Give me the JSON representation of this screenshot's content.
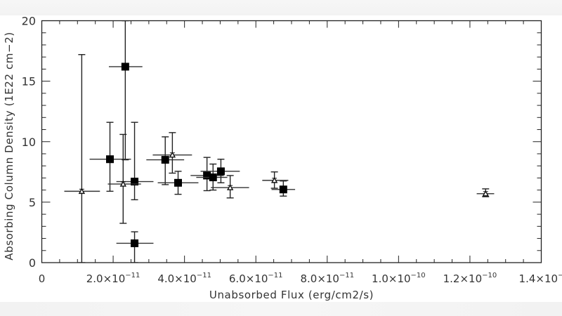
{
  "chart_data": {
    "type": "scatter",
    "title": "",
    "xlabel": "Unabsorbed Flux (erg/cm2/s)",
    "ylabel": "Absorbing Column Density (1E22 cm−2)",
    "xlim": [
      0,
      1.4e-10
    ],
    "ylim": [
      0,
      20
    ],
    "grid": false,
    "legend": null,
    "x_ticks": [
      {
        "value": 0,
        "label": "0"
      },
      {
        "value": 2e-11,
        "label": "2.0×10",
        "exp": "−11"
      },
      {
        "value": 4e-11,
        "label": "4.0×10",
        "exp": "−11"
      },
      {
        "value": 6e-11,
        "label": "6.0×10",
        "exp": "−11"
      },
      {
        "value": 8e-11,
        "label": "8.0×10",
        "exp": "−11"
      },
      {
        "value": 1e-10,
        "label": "1.0×10",
        "exp": "−10"
      },
      {
        "value": 1.2e-10,
        "label": "1.2×10",
        "exp": "−10"
      },
      {
        "value": 1.4e-10,
        "label": "1.4×10",
        "exp": "−"
      }
    ],
    "y_ticks": [
      {
        "value": 0,
        "label": "0"
      },
      {
        "value": 5,
        "label": "5"
      },
      {
        "value": 10,
        "label": "10"
      },
      {
        "value": 15,
        "label": "15"
      },
      {
        "value": 20,
        "label": "20"
      }
    ],
    "series": [
      {
        "name": "squares",
        "marker": "square",
        "points": [
          {
            "x": 2.34e-11,
            "y": 16.2,
            "xerr": [
              1.88e-11,
              2.82e-11
            ],
            "yerr": [
              8.5,
              20.0
            ]
          },
          {
            "x": 1.91e-11,
            "y": 8.55,
            "xerr": [
              1.34e-11,
              2.5e-11
            ],
            "yerr": [
              5.9,
              11.6
            ]
          },
          {
            "x": 2.6e-11,
            "y": 6.7,
            "xerr": [
              2.09e-11,
              3.13e-11
            ],
            "yerr": [
              5.2,
              11.6
            ]
          },
          {
            "x": 2.6e-11,
            "y": 1.6,
            "xerr": [
              2.09e-11,
              3.13e-11
            ],
            "yerr": [
              0.0,
              2.55
            ]
          },
          {
            "x": 3.46e-11,
            "y": 8.5,
            "xerr": [
              2.93e-11,
              3.99e-11
            ],
            "yerr": [
              6.45,
              10.4
            ]
          },
          {
            "x": 3.82e-11,
            "y": 6.6,
            "xerr": [
              3.25e-11,
              4.39e-11
            ],
            "yerr": [
              5.65,
              7.55
            ]
          },
          {
            "x": 4.63e-11,
            "y": 7.2,
            "xerr": [
              4.17e-11,
              5.1e-11
            ],
            "yerr": [
              5.95,
              8.7
            ]
          },
          {
            "x": 4.8e-11,
            "y": 7.05,
            "xerr": [
              4.33e-11,
              5.2e-11
            ],
            "yerr": [
              6.0,
              8.15
            ]
          },
          {
            "x": 5.02e-11,
            "y": 7.55,
            "xerr": [
              4.45e-11,
              5.55e-11
            ],
            "yerr": [
              6.6,
              8.55
            ]
          },
          {
            "x": 6.77e-11,
            "y": 6.05,
            "xerr": [
              6.44e-11,
              7.1e-11
            ],
            "yerr": [
              5.5,
              6.75
            ]
          }
        ]
      },
      {
        "name": "triangles",
        "marker": "triangle",
        "points": [
          {
            "x": 1.12e-11,
            "y": 5.9,
            "xerr": [
              6.3e-12,
              1.63e-11
            ],
            "yerr": [
              0.0,
              17.2
            ]
          },
          {
            "x": 2.28e-11,
            "y": 6.5,
            "xerr": [
              1.85e-11,
              2.78e-11
            ],
            "yerr": [
              3.25,
              10.6
            ]
          },
          {
            "x": 3.66e-11,
            "y": 8.9,
            "xerr": [
              3.11e-11,
              4.21e-11
            ],
            "yerr": [
              7.4,
              10.75
            ]
          },
          {
            "x": 5.28e-11,
            "y": 6.2,
            "xerr": [
              4.74e-11,
              5.81e-11
            ],
            "yerr": [
              5.35,
              7.2
            ]
          },
          {
            "x": 6.52e-11,
            "y": 6.8,
            "xerr": [
              6.18e-11,
              6.91e-11
            ],
            "yerr": [
              6.15,
              7.5
            ]
          },
          {
            "x": 1.244e-10,
            "y": 5.7,
            "xerr": [
              1.219e-10,
              1.268e-10
            ],
            "yerr": [
              5.45,
              6.1
            ]
          }
        ]
      }
    ]
  },
  "labels": {
    "xlabel": "Unabsorbed Flux (erg/cm2/s)",
    "ylabel": "Absorbing Column Density (1E22 cm−2)"
  }
}
